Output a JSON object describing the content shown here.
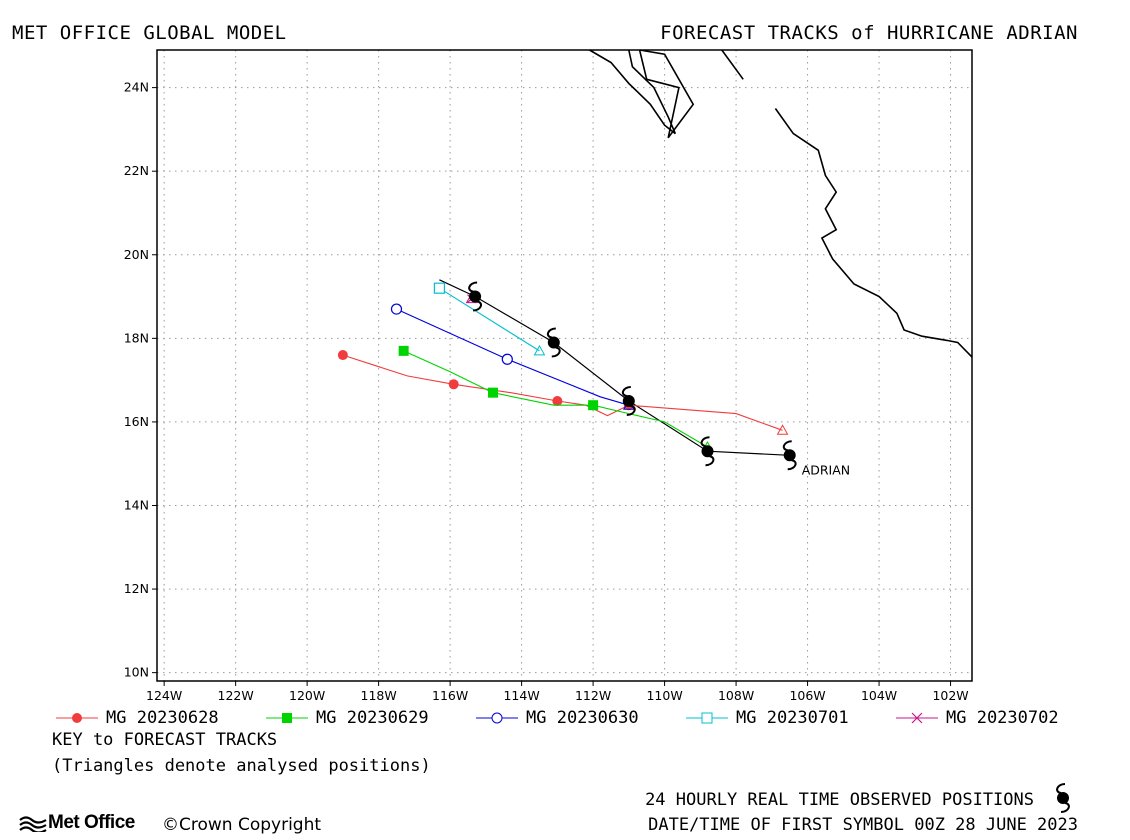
{
  "header": {
    "left_title": "MET OFFICE GLOBAL MODEL",
    "right_title": "FORECAST TRACKS of HURRICANE ADRIAN"
  },
  "map": {
    "lon_range": [
      -124.2,
      -101.4
    ],
    "lat_range": [
      9.8,
      24.9
    ],
    "x_ticks": [
      -124,
      -122,
      -120,
      -118,
      -116,
      -114,
      -112,
      -110,
      -108,
      -106,
      -104,
      -102
    ],
    "x_tick_labels": [
      "124W",
      "122W",
      "120W",
      "118W",
      "116W",
      "114W",
      "112W",
      "110W",
      "108W",
      "106W",
      "104W",
      "102W"
    ],
    "y_ticks": [
      10,
      12,
      14,
      16,
      18,
      20,
      22,
      24
    ],
    "y_tick_labels": [
      "10N",
      "12N",
      "14N",
      "16N",
      "18N",
      "20N",
      "22N",
      "24N"
    ],
    "grid": "dotted",
    "storm_label": "ADRIAN",
    "coastline": [
      [
        [
          -112.1,
          24.9
        ],
        [
          -111.5,
          24.6
        ],
        [
          -111.0,
          24.1
        ],
        [
          -110.4,
          23.6
        ],
        [
          -110.0,
          23.1
        ],
        [
          -109.7,
          22.9
        ],
        [
          -109.9,
          23.3
        ],
        [
          -110.3,
          24.0
        ],
        [
          -110.9,
          24.5
        ],
        [
          -111.0,
          24.9
        ]
      ],
      [
        [
          -110.7,
          24.9
        ],
        [
          -110.0,
          24.8
        ],
        [
          -109.2,
          23.6
        ],
        [
          -109.9,
          22.8
        ],
        [
          -109.6,
          24.0
        ],
        [
          -110.5,
          24.2
        ],
        [
          -110.7,
          24.9
        ]
      ],
      [
        [
          -108.4,
          24.9
        ],
        [
          -107.8,
          24.2
        ]
      ],
      [
        [
          -106.9,
          23.5
        ],
        [
          -106.4,
          22.9
        ],
        [
          -105.7,
          22.5
        ],
        [
          -105.5,
          21.9
        ],
        [
          -105.2,
          21.5
        ],
        [
          -105.5,
          21.1
        ],
        [
          -105.2,
          20.6
        ],
        [
          -105.6,
          20.4
        ],
        [
          -105.3,
          19.9
        ],
        [
          -104.7,
          19.3
        ],
        [
          -104.0,
          19.0
        ],
        [
          -103.5,
          18.6
        ],
        [
          -103.3,
          18.2
        ],
        [
          -102.8,
          18.05
        ],
        [
          -102.1,
          17.95
        ],
        [
          -101.8,
          17.9
        ],
        [
          -101.4,
          17.55
        ]
      ]
    ]
  },
  "chart_data": {
    "type": "scatter",
    "title": "FORECAST TRACKS of HURRICANE ADRIAN",
    "xlabel": "",
    "ylabel": "",
    "xlim": [
      -124.2,
      -101.4
    ],
    "ylim": [
      9.8,
      24.9
    ],
    "observed": {
      "label": "24 HOURLY REAL TIME OBSERVED POSITIONS",
      "color": "#000000",
      "track": [
        [
          -106.5,
          15.2
        ],
        [
          -108.8,
          15.3
        ],
        [
          -111.0,
          16.5
        ],
        [
          -113.1,
          17.9
        ],
        [
          -115.3,
          19.0
        ],
        [
          -116.3,
          19.4
        ]
      ],
      "symbols": [
        [
          -106.5,
          15.2
        ],
        [
          -108.8,
          15.3
        ],
        [
          -111.0,
          16.5
        ],
        [
          -113.1,
          17.9
        ],
        [
          -115.3,
          19.0
        ]
      ]
    },
    "series": [
      {
        "name": "MG 20230628",
        "color": "#f03c3c",
        "marker": "filled-circle",
        "track": [
          [
            -106.7,
            15.8
          ],
          [
            -108.0,
            16.2
          ],
          [
            -111.0,
            16.4
          ],
          [
            -111.6,
            16.15
          ],
          [
            -112.2,
            16.4
          ],
          [
            -113.0,
            16.5
          ],
          [
            -114.3,
            16.7
          ],
          [
            -115.9,
            16.9
          ],
          [
            -117.2,
            17.1
          ],
          [
            -119.0,
            17.6
          ]
        ],
        "analysed": [
          -106.7,
          15.8
        ],
        "markers": [
          [
            -111.0,
            16.4
          ],
          [
            -113.0,
            16.5
          ],
          [
            -115.9,
            16.9
          ],
          [
            -119.0,
            17.6
          ]
        ]
      },
      {
        "name": "MG 20230629",
        "color": "#00d400",
        "marker": "filled-square",
        "track": [
          [
            -108.8,
            15.4
          ],
          [
            -110.0,
            16.0
          ],
          [
            -111.0,
            16.2
          ],
          [
            -112.0,
            16.4
          ],
          [
            -113.1,
            16.4
          ],
          [
            -114.8,
            16.7
          ],
          [
            -116.0,
            17.2
          ],
          [
            -117.3,
            17.7
          ]
        ],
        "analysed": [
          -108.8,
          15.4
        ],
        "markers": [
          [
            -112.0,
            16.4
          ],
          [
            -114.8,
            16.7
          ],
          [
            -117.3,
            17.7
          ]
        ]
      },
      {
        "name": "MG 20230630",
        "color": "#0000dc",
        "marker": "open-circle",
        "track": [
          [
            -111.0,
            16.4
          ],
          [
            -111.8,
            16.6
          ],
          [
            -114.4,
            17.5
          ],
          [
            -117.5,
            18.7
          ]
        ],
        "analysed": [
          -111.0,
          16.4
        ],
        "markers": [
          [
            -114.4,
            17.5
          ],
          [
            -117.5,
            18.7
          ]
        ]
      },
      {
        "name": "MG 20230701",
        "color": "#00c0d0",
        "marker": "open-square",
        "track": [
          [
            -113.5,
            17.7
          ],
          [
            -116.3,
            19.2
          ]
        ],
        "analysed": [
          -113.5,
          17.7
        ],
        "markers": [
          [
            -116.3,
            19.2
          ]
        ]
      },
      {
        "name": "MG 20230702",
        "color": "#c8148c",
        "marker": "cross",
        "track": [
          [
            -115.4,
            18.95
          ]
        ],
        "analysed": [
          -115.4,
          18.95
        ],
        "markers": []
      }
    ]
  },
  "key": {
    "title": "KEY to FORECAST TRACKS",
    "subtitle": "(Triangles denote analysed positions)"
  },
  "footer": {
    "observed_label": "24 HOURLY REAL TIME OBSERVED POSITIONS",
    "date_label": "DATE/TIME OF FIRST SYMBOL 00Z 28 JUNE 2023",
    "brand": "Met Office",
    "copyright": "Crown Copyright"
  }
}
